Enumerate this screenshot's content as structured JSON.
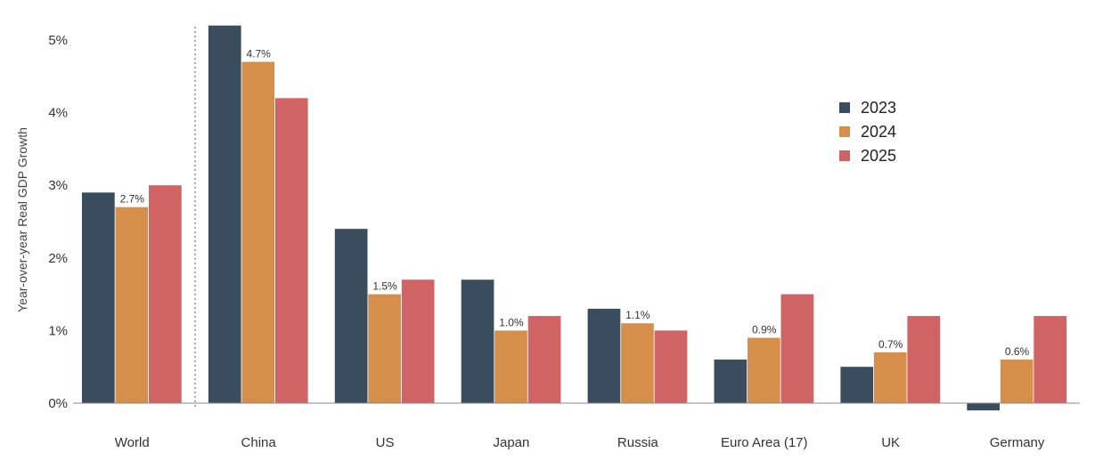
{
  "chart_data": {
    "type": "bar",
    "title": "",
    "xlabel": "",
    "ylabel": "Year-over-year Real GDP Growth",
    "ylim": [
      -0.2,
      5.2
    ],
    "y_ticks": [
      {
        "value": 0,
        "label": "0%"
      },
      {
        "value": 1,
        "label": "1%"
      },
      {
        "value": 2,
        "label": "2%"
      },
      {
        "value": 3,
        "label": "3%"
      },
      {
        "value": 4,
        "label": "4%"
      },
      {
        "value": 5,
        "label": "5%"
      }
    ],
    "categories": [
      "World",
      "China",
      "US",
      "Japan",
      "Russia",
      "Euro Area (17)",
      "UK",
      "Germany"
    ],
    "separator_after_category": "World",
    "grid": false,
    "legend_position": "right",
    "series": [
      {
        "name": "2023",
        "color": "#3a4d5e",
        "values": [
          2.9,
          5.2,
          2.4,
          1.7,
          1.3,
          0.6,
          0.5,
          -0.1
        ]
      },
      {
        "name": "2024",
        "color": "#d68f4b",
        "values": [
          2.7,
          4.7,
          1.5,
          1.0,
          1.1,
          0.9,
          0.7,
          0.6
        ],
        "data_labels": [
          "2.7%",
          "4.7%",
          "1.5%",
          "1.0%",
          "1.1%",
          "0.9%",
          "0.7%",
          "0.6%"
        ]
      },
      {
        "name": "2025",
        "color": "#d06464",
        "values": [
          3.0,
          4.2,
          1.7,
          1.2,
          1.0,
          1.5,
          1.2,
          1.2
        ]
      }
    ]
  }
}
